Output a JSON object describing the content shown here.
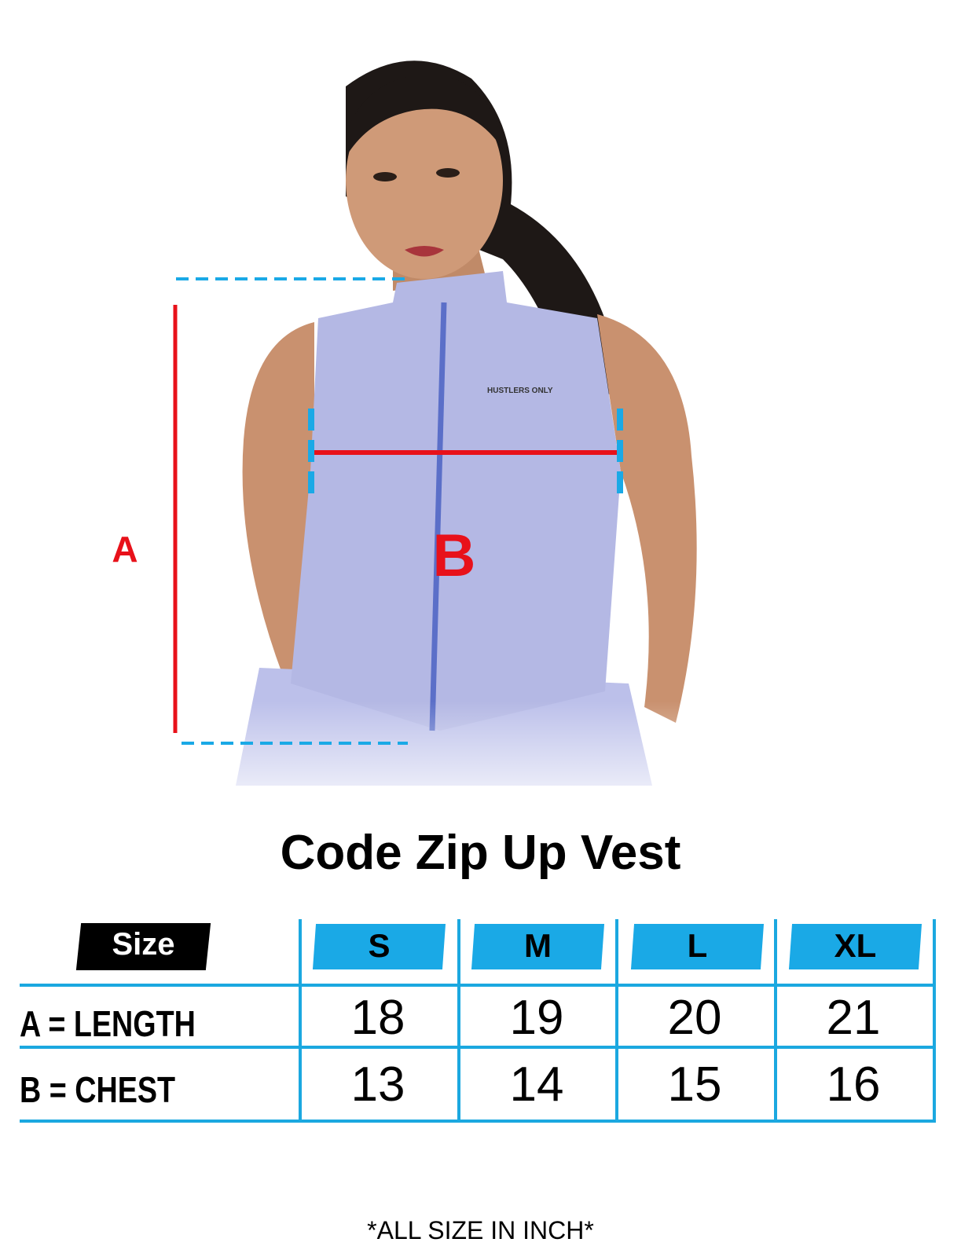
{
  "product": {
    "title": "Code Zip Up Vest",
    "brand_print": "HUSTLERS ONLY",
    "garment_color": "#b4b8e4"
  },
  "diagram": {
    "label_a": "A",
    "label_b": "B",
    "measure_line_color": "#e8111a",
    "guide_color": "#1aa9e6"
  },
  "size_table": {
    "header_label": "Size",
    "sizes": [
      "S",
      "M",
      "L",
      "XL"
    ],
    "rows": [
      {
        "label": "A = LENGTH",
        "values": [
          "18",
          "19",
          "20",
          "21"
        ]
      },
      {
        "label": "B = CHEST",
        "values": [
          "13",
          "14",
          "15",
          "16"
        ]
      }
    ]
  },
  "footnote": "*ALL SIZE IN INCH*"
}
